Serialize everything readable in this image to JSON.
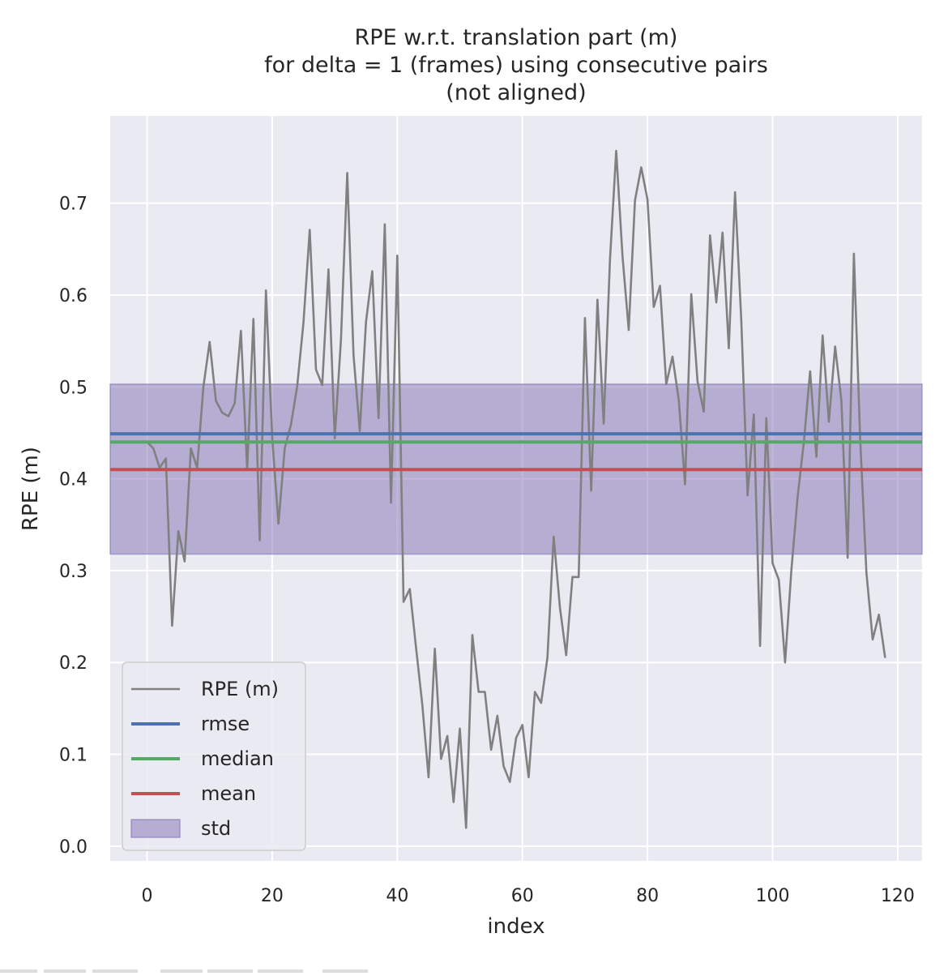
{
  "chart_data": {
    "type": "line",
    "title_lines": [
      "RPE w.r.t. translation part (m)",
      "for delta = 1 (frames) using consecutive pairs",
      "(not aligned)"
    ],
    "xlabel": "index",
    "ylabel": "RPE (m)",
    "xlim": [
      -5.9,
      123.9
    ],
    "ylim": [
      -0.016,
      0.795
    ],
    "x_ticks": [
      0,
      20,
      40,
      60,
      80,
      100,
      120
    ],
    "y_ticks": [
      0.0,
      0.1,
      0.2,
      0.3,
      0.4,
      0.5,
      0.6,
      0.7
    ],
    "y_tick_labels": [
      "0.0",
      "0.1",
      "0.2",
      "0.3",
      "0.4",
      "0.5",
      "0.6",
      "0.7"
    ],
    "grid": true,
    "legend_position": "lower-left",
    "series": [
      {
        "name": "RPE (m)",
        "color": "#808080",
        "values": [
          0.44,
          0.433,
          0.412,
          0.422,
          0.24,
          0.343,
          0.31,
          0.433,
          0.412,
          0.5,
          0.549,
          0.485,
          0.472,
          0.468,
          0.482,
          0.561,
          0.41,
          0.574,
          0.333,
          0.605,
          0.445,
          0.351,
          0.433,
          0.459,
          0.501,
          0.57,
          0.671,
          0.519,
          0.502,
          0.628,
          0.444,
          0.552,
          0.733,
          0.535,
          0.452,
          0.571,
          0.626,
          0.466,
          0.677,
          0.374,
          0.643,
          0.266,
          0.28,
          0.216,
          0.154,
          0.075,
          0.215,
          0.095,
          0.12,
          0.048,
          0.128,
          0.02,
          0.23,
          0.168,
          0.168,
          0.105,
          0.142,
          0.087,
          0.07,
          0.118,
          0.132,
          0.075,
          0.168,
          0.156,
          0.205,
          0.337,
          0.26,
          0.208,
          0.293,
          0.293,
          0.575,
          0.387,
          0.595,
          0.46,
          0.638,
          0.757,
          0.643,
          0.562,
          0.703,
          0.739,
          0.704,
          0.587,
          0.61,
          0.503,
          0.533,
          0.486,
          0.394,
          0.601,
          0.506,
          0.473,
          0.665,
          0.592,
          0.668,
          0.542,
          0.712,
          0.572,
          0.382,
          0.47,
          0.218,
          0.466,
          0.308,
          0.29,
          0.2,
          0.3,
          0.38,
          0.44,
          0.517,
          0.424,
          0.556,
          0.462,
          0.544,
          0.485,
          0.314,
          0.645,
          0.444,
          0.298,
          0.225,
          0.252,
          0.205
        ]
      },
      {
        "name": "rmse",
        "color": "#4c72b0",
        "value": 0.449
      },
      {
        "name": "median",
        "color": "#55a868",
        "value": 0.44
      },
      {
        "name": "mean",
        "color": "#c44e52",
        "value": 0.41
      },
      {
        "name": "std",
        "color": "#8172b2",
        "band": [
          0.318,
          0.503
        ]
      }
    ],
    "legend": [
      "RPE (m)",
      "rmse",
      "median",
      "mean",
      "std"
    ]
  }
}
